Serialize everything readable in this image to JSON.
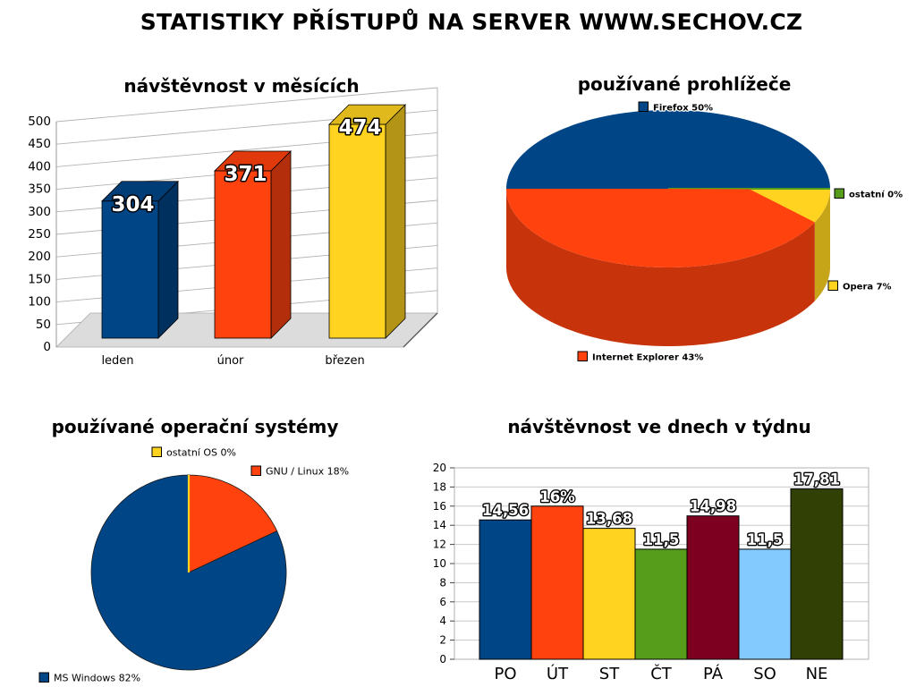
{
  "page": {
    "title": "STATISTIKY PŘÍSTUPŮ NA SERVER WWW.SECHOV.CZ"
  },
  "chart_data": [
    {
      "id": "months",
      "type": "bar",
      "variant": "3d-column",
      "title": "návštěvnost v měsících",
      "categories": [
        "leden",
        "únor",
        "březen"
      ],
      "values": [
        304,
        371,
        474
      ],
      "value_labels": [
        "304",
        "371",
        "474"
      ],
      "bar_colors": [
        "#004586",
        "#ff420e",
        "#ffd320"
      ],
      "ylabel": "",
      "xlabel": "",
      "ylim": [
        0,
        500
      ],
      "ytick_step": 50,
      "grid": true,
      "legend_position": "none"
    },
    {
      "id": "browsers",
      "type": "pie",
      "variant": "3d",
      "title": "používané prohlížeče",
      "slices": [
        {
          "name": "Firefox",
          "label": "Firefox 50%",
          "value_pct": 50,
          "color": "#004586"
        },
        {
          "name": "ostatní",
          "label": "ostatní 0%",
          "value_pct": 0,
          "color": "#579d1c"
        },
        {
          "name": "Opera",
          "label": "Opera 7%",
          "value_pct": 7,
          "color": "#ffd320"
        },
        {
          "name": "Internet Explorer",
          "label": "Internet Explorer 43%",
          "value_pct": 43,
          "color": "#ff420e"
        }
      ],
      "legend_position": "around"
    },
    {
      "id": "os",
      "type": "pie",
      "variant": "flat",
      "title": "používané operační systémy",
      "slices": [
        {
          "name": "ostatní OS",
          "label": "ostatní OS  0%",
          "value_pct": 0,
          "color": "#ffd320"
        },
        {
          "name": "GNU / Linux",
          "label": "GNU / Linux  18%",
          "value_pct": 18,
          "color": "#ff420e"
        },
        {
          "name": "MS Windows",
          "label": "MS Windows 82%",
          "value_pct": 82,
          "color": "#004586"
        }
      ],
      "legend_position": "around"
    },
    {
      "id": "weekdays",
      "type": "bar",
      "variant": "flat-column",
      "title": "návštěvnost ve dnech v týdnu",
      "categories": [
        "PO",
        "ÚT",
        "ST",
        "ČT",
        "PÁ",
        "SO",
        "NE"
      ],
      "values": [
        14.56,
        16,
        13.68,
        11.5,
        14.98,
        11.5,
        17.81
      ],
      "value_labels": [
        "14,56",
        "16%",
        "13,68",
        "11,5",
        "14,98",
        "11,5",
        "17,81"
      ],
      "bar_colors": [
        "#004586",
        "#ff420e",
        "#ffd320",
        "#579d1c",
        "#7e0021",
        "#83caff",
        "#314004"
      ],
      "ylabel": "",
      "xlabel": "",
      "ylim": [
        0,
        20
      ],
      "ytick_step": 2,
      "grid": true,
      "legend_position": "none"
    }
  ]
}
